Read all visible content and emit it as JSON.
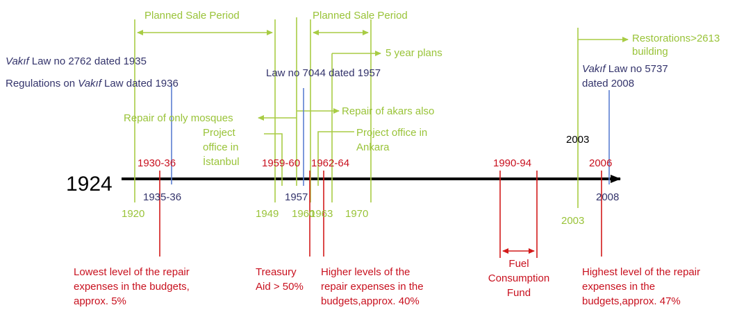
{
  "green": {
    "sale_period_1": "Planned Sale Period",
    "sale_period_2": "Planned Sale Period",
    "five_year_plans": "5 year plans",
    "repair_mosques": "Repair of only mosques",
    "repair_akars": "Repair of akars also",
    "project_istanbul": [
      "Project",
      "office in",
      "İstanbul"
    ],
    "project_ankara": [
      "Project office in",
      "Ankara"
    ],
    "restorations": [
      "Restorations>2613",
      "building"
    ],
    "years": [
      "1920",
      "1949",
      "1960",
      "1963",
      "1970",
      "2003"
    ]
  },
  "blue": {
    "law_2762": {
      "italic": "Vakıf",
      "rest": " Law no 2762 dated 1935"
    },
    "regulations": {
      "before": "Regulations on ",
      "italic": "Vakıf",
      "after": " Law dated 1936"
    },
    "law_7044": "Law no 7044 dated 1957",
    "law_5737": {
      "italic": "Vakıf",
      "rest": " Law no 5737",
      "line2": "dated 2008"
    },
    "years": [
      "1935-36",
      "1957",
      "2008"
    ]
  },
  "black": {
    "start": "1924",
    "year_2003": "2003"
  },
  "red": {
    "periods": [
      "1930-36",
      "1959-60",
      "1962-64",
      "1990-94",
      "2006"
    ],
    "lowest": [
      "Lowest level of the repair",
      "expenses in the budgets,",
      "approx. 5%"
    ],
    "treasury": [
      "Treasury",
      "Aid > 50%"
    ],
    "higher": [
      "Higher levels of the",
      "repair expenses in the",
      "budgets,approx. 40%"
    ],
    "fuel": [
      "Fuel",
      "Consumption",
      "Fund"
    ],
    "highest": [
      "Highest level of the repair",
      "expenses in the",
      "budgets,approx. 47%"
    ]
  }
}
